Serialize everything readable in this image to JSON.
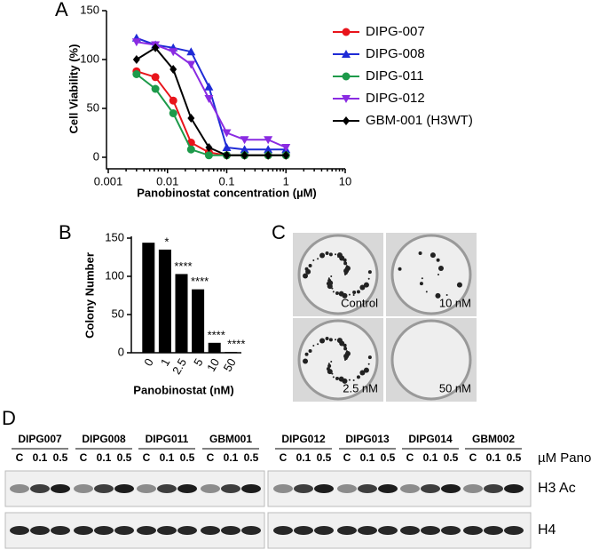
{
  "panel_labels": [
    "A",
    "B",
    "C",
    "D"
  ],
  "chart_data": [
    {
      "type": "line",
      "xlabel": "Panobinostat concentration (µM)",
      "ylabel": "Cell Viability (%)",
      "log_x": true,
      "x": [
        0.003,
        0.00625,
        0.0125,
        0.025,
        0.05,
        0.1,
        0.2,
        0.5,
        1
      ],
      "xlim": [
        0.001,
        10
      ],
      "xticks": [
        0.001,
        0.01,
        0.1,
        1,
        10
      ],
      "ylim": [
        -10,
        150
      ],
      "yticks": [
        0,
        50,
        100,
        150
      ],
      "legend": "right",
      "series": [
        {
          "name": "DIPG-007",
          "color": "#e8141b",
          "marker": "circle",
          "values": [
            88,
            82,
            58,
            15,
            5,
            2,
            2,
            2,
            2
          ]
        },
        {
          "name": "DIPG-008",
          "color": "#1f2bd6",
          "marker": "triangle-up",
          "values": [
            122,
            115,
            112,
            108,
            72,
            10,
            8,
            8,
            8
          ]
        },
        {
          "name": "DIPG-011",
          "color": "#1d9a4a",
          "marker": "circle",
          "values": [
            85,
            70,
            45,
            8,
            2,
            2,
            2,
            2,
            2
          ]
        },
        {
          "name": "DIPG-012",
          "color": "#8a2be2",
          "marker": "triangle-down",
          "values": [
            118,
            115,
            108,
            95,
            60,
            25,
            18,
            18,
            10
          ]
        },
        {
          "name": "GBM-001 (H3WT)",
          "color": "#000000",
          "marker": "diamond",
          "values": [
            100,
            112,
            90,
            40,
            10,
            2,
            2,
            2,
            2
          ]
        }
      ]
    },
    {
      "type": "bar",
      "xlabel": "Panobinostat (nM)",
      "ylabel": "Colony Number",
      "categories": [
        "0",
        "1",
        "2.5",
        "5",
        "10",
        "50"
      ],
      "values": [
        144,
        135,
        103,
        83,
        13,
        1
      ],
      "annotations": [
        null,
        "*",
        "****",
        "****",
        "****",
        "****"
      ],
      "color": "#000000",
      "ylim": [
        0,
        150
      ],
      "yticks": [
        0,
        50,
        100,
        150
      ]
    }
  ],
  "colonies": {
    "labels": [
      "Control",
      "10 nM",
      "2.5 nM",
      "50 nM"
    ]
  },
  "blot": {
    "groups": [
      "DIPG007",
      "DIPG008",
      "DIPG011",
      "GBM001",
      "DIPG012",
      "DIPG013",
      "DIPG014",
      "GBM002"
    ],
    "lanes": [
      "C",
      "0.1",
      "0.5"
    ],
    "unit": "µM Pano",
    "rows": [
      "H3 Ac",
      "H4"
    ]
  }
}
